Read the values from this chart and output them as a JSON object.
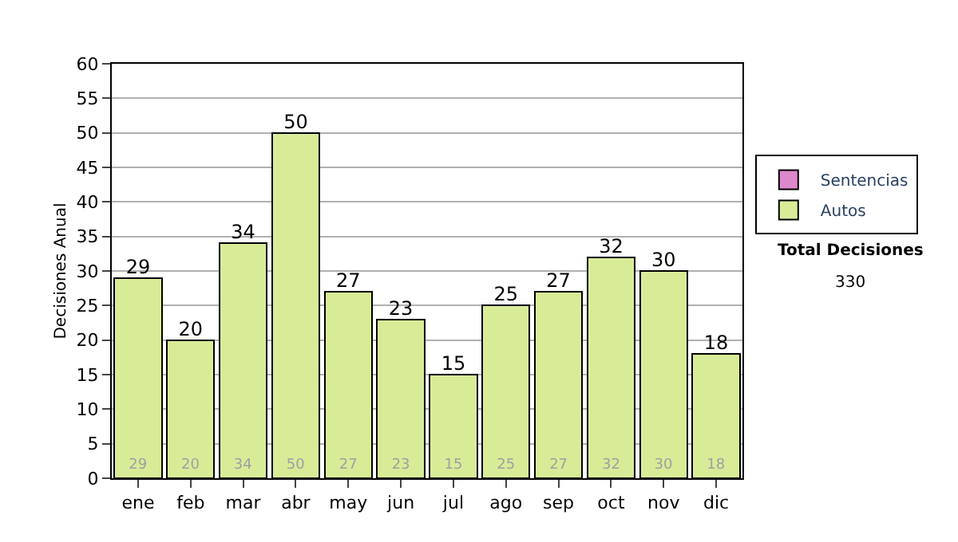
{
  "chart_data": {
    "type": "bar",
    "stacked": true,
    "ylabel": "Decisiones Anual",
    "categories": [
      "ene",
      "feb",
      "mar",
      "abr",
      "may",
      "jun",
      "jul",
      "ago",
      "sep",
      "oct",
      "nov",
      "dic"
    ],
    "series": [
      {
        "name": "Sentencias",
        "color": "#dd88cc",
        "values": [
          null,
          null,
          null,
          null,
          null,
          null,
          null,
          null,
          null,
          null,
          null,
          null
        ]
      },
      {
        "name": "Autos",
        "color": "#d8ec98",
        "values": [
          29,
          20,
          34,
          50,
          27,
          23,
          15,
          25,
          27,
          32,
          30,
          18
        ]
      }
    ],
    "data_labels": true,
    "totals": [
      "29",
      "20",
      "34",
      "50",
      "27",
      "23",
      "15",
      "25",
      "27",
      "32",
      "30",
      "18"
    ],
    "ylim": [
      0,
      60
    ],
    "yticks": [
      0,
      5,
      10,
      15,
      20,
      25,
      30,
      35,
      40,
      45,
      50,
      55,
      60
    ],
    "grid": "y",
    "legend": "right",
    "annotations": [
      "Total Decisiones",
      "330"
    ]
  }
}
